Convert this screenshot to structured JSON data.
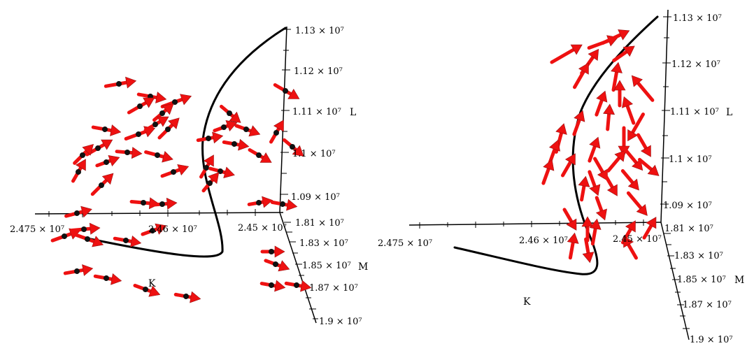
{
  "colors": {
    "arrow": "#ee1111",
    "curve": "#000000",
    "axes": "#000000"
  },
  "chart_data": [
    {
      "type": "scatter",
      "view": "3d field plot with trajectory (left panel)",
      "axes": [
        {
          "name": "K",
          "label": "K",
          "ticks": [
            "2.475 × 10⁷",
            "2.46 × 10⁷",
            "2.45 × 10⁷"
          ]
        },
        {
          "name": "L",
          "label": "L",
          "ticks": [
            "1.13 × 10⁷",
            "1.12 × 10⁷",
            "1.11 × 10⁷",
            "1.1 × 10⁷",
            "1.09 × 10⁷"
          ]
        },
        {
          "name": "M",
          "label": "M",
          "ticks": [
            "1.81 × 10⁷",
            "1.83 × 10⁷",
            "1.85 × 10⁷",
            "1.87 × 10⁷",
            "1.9 × 10⁷"
          ]
        }
      ],
      "series": [
        {
          "kind": "trajectory"
        },
        {
          "kind": "direction-field"
        }
      ]
    },
    {
      "type": "scatter",
      "view": "3d field plot with trajectory (right panel)",
      "axes": [
        {
          "name": "K",
          "label": "K",
          "ticks": [
            "2.475 × 10⁷",
            "2.46 × 10⁷",
            "2.45 × 10⁷"
          ]
        },
        {
          "name": "L",
          "label": "L",
          "ticks": [
            "1.13 × 10⁷",
            "1.12 × 10⁷",
            "1.11 × 10⁷",
            "1.1 × 10⁷",
            "1.09 × 10⁷"
          ]
        },
        {
          "name": "M",
          "label": "M",
          "ticks": [
            "1.81 × 10⁷",
            "1.83 × 10⁷",
            "1.85 × 10⁷",
            "1.87 × 10⁷",
            "1.9 × 10⁷"
          ]
        }
      ],
      "series": [
        {
          "kind": "trajectory"
        },
        {
          "kind": "direction-field"
        }
      ]
    }
  ]
}
